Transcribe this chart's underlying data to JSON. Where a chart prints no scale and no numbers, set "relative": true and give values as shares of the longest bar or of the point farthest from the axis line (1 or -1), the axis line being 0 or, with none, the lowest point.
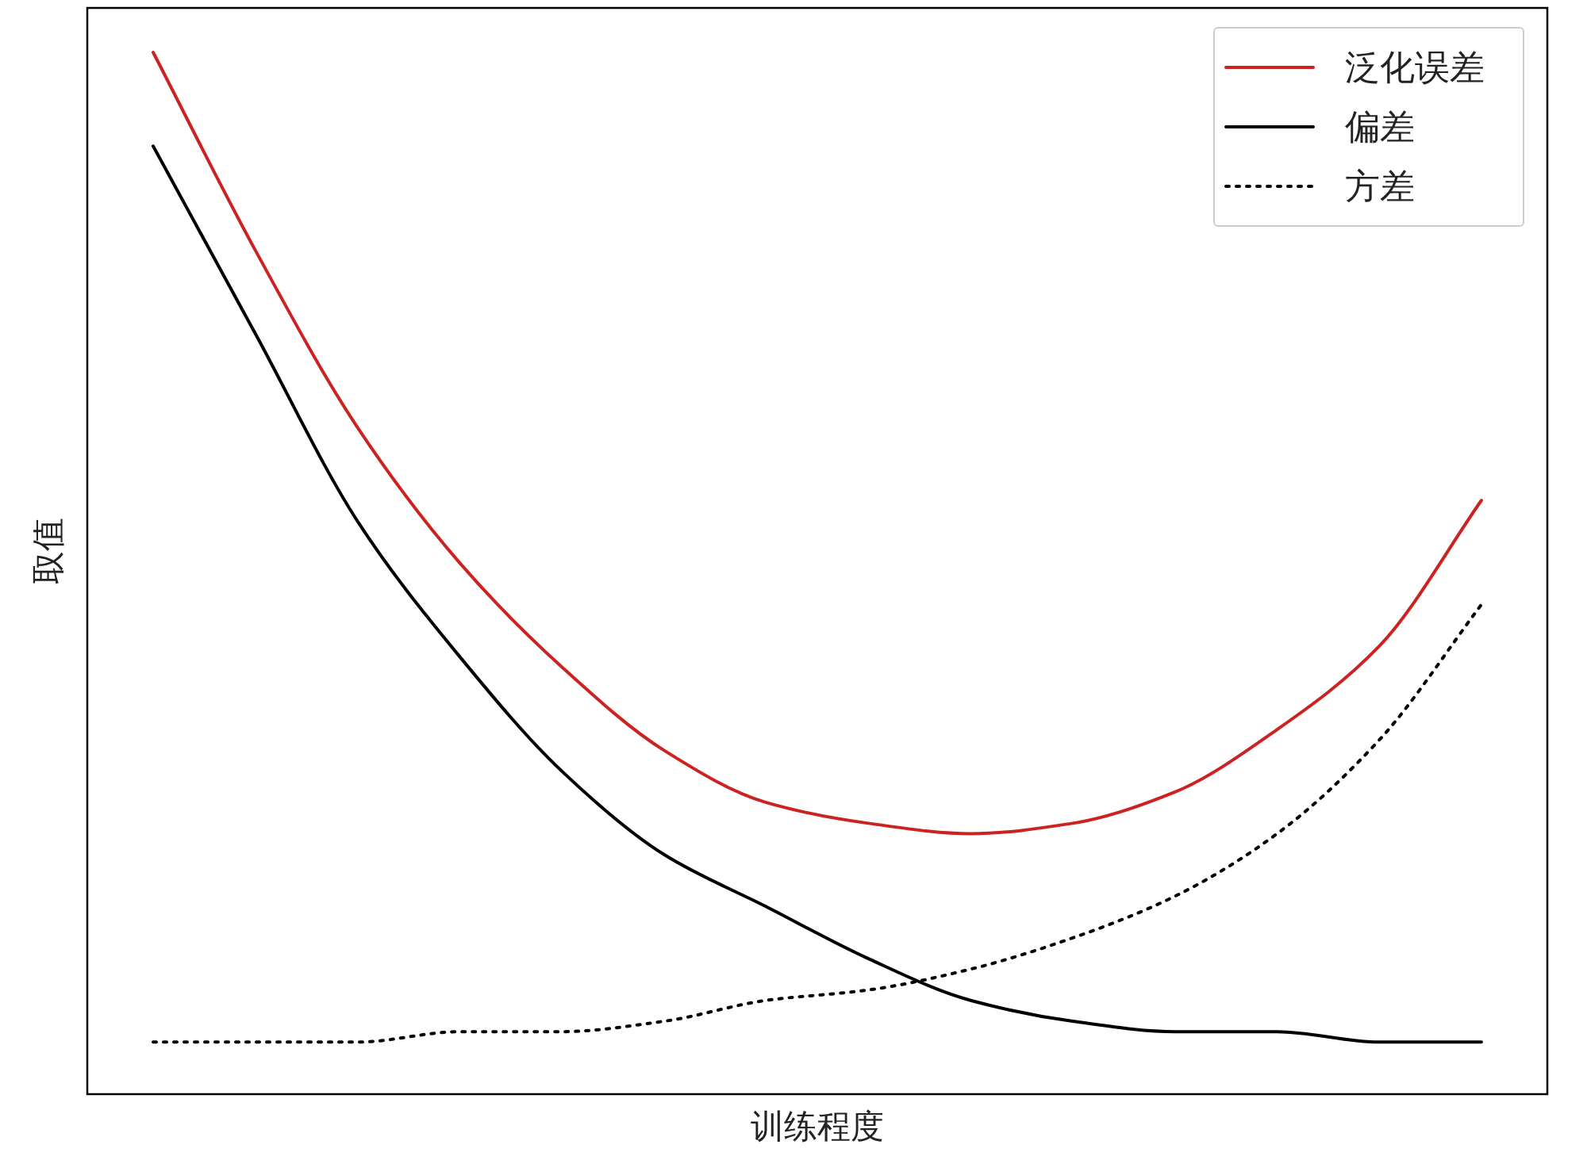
{
  "chart_data": {
    "type": "line",
    "relative": true,
    "xlabel": "训练程度",
    "ylabel": "取值",
    "categories": [
      null,
      null,
      null,
      null,
      null,
      null,
      null,
      null,
      null,
      null,
      null,
      null,
      null,
      null
    ],
    "series": [
      {
        "name": "泛化误差",
        "color": "#cc2222",
        "line_style": "solid",
        "values": [
          1.0,
          0.81,
          0.64,
          0.51,
          0.41,
          0.33,
          0.28,
          0.26,
          0.25,
          0.26,
          0.29,
          0.35,
          0.43,
          0.57
        ]
      },
      {
        "name": "偏差",
        "color": "#000000",
        "line_style": "solid",
        "values": [
          0.91,
          0.73,
          0.55,
          0.42,
          0.31,
          0.23,
          0.18,
          0.13,
          0.09,
          0.07,
          0.06,
          0.06,
          0.05,
          0.05
        ]
      },
      {
        "name": "方差",
        "color": "#000000",
        "line_style": "dotted",
        "values": [
          0.05,
          0.05,
          0.05,
          0.06,
          0.06,
          0.07,
          0.09,
          0.1,
          0.12,
          0.15,
          0.19,
          0.25,
          0.34,
          0.47
        ]
      }
    ],
    "legend": "top right"
  }
}
